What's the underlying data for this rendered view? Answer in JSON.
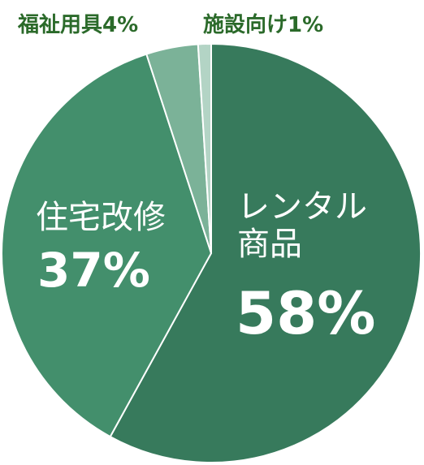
{
  "chart_data": {
    "type": "pie",
    "categories": [
      "レンタル商品",
      "住宅改修",
      "福祉用具",
      "施設向け"
    ],
    "values": [
      58,
      37,
      4,
      1
    ],
    "value_labels": [
      "58%",
      "37%",
      "4%",
      "1%"
    ],
    "colors": [
      "#377a5c",
      "#438f6c",
      "#7bb298",
      "#b3d4c5"
    ]
  }
}
